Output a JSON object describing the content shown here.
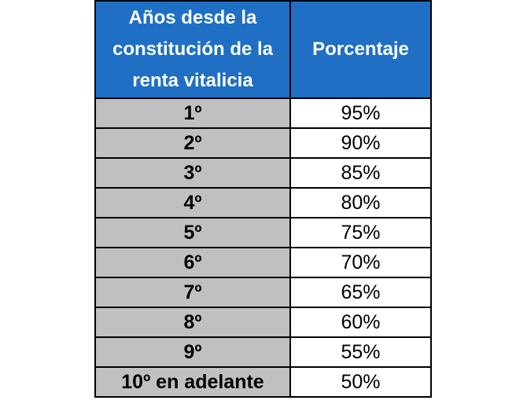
{
  "table": {
    "header": {
      "col1_lines": [
        "Años desde la",
        "constitución de la",
        "renta vitalicia"
      ],
      "col2": "Porcentaje"
    },
    "rows": [
      {
        "year": "1º",
        "pct": "95%"
      },
      {
        "year": "2º",
        "pct": "90%"
      },
      {
        "year": "3º",
        "pct": "85%"
      },
      {
        "year": "4º",
        "pct": "80%"
      },
      {
        "year": "5º",
        "pct": "75%"
      },
      {
        "year": "6º",
        "pct": "70%"
      },
      {
        "year": "7º",
        "pct": "65%"
      },
      {
        "year": "8º",
        "pct": "60%"
      },
      {
        "year": "9º",
        "pct": "55%"
      },
      {
        "year": "10º en adelante",
        "pct": "50%"
      }
    ]
  },
  "colors": {
    "header_bg": "#1f6fc5",
    "year_bg": "#c0c0c0",
    "pct_bg": "#ffffff"
  }
}
